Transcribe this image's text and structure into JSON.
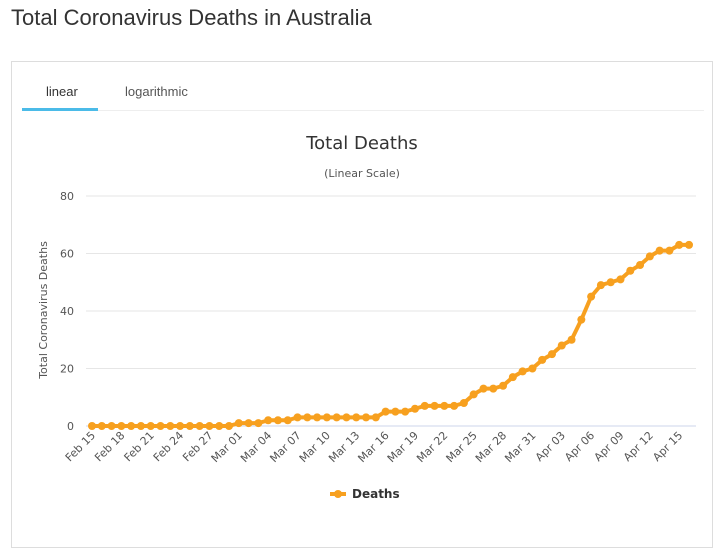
{
  "page": {
    "title": "Total Coronavirus Deaths in Australia"
  },
  "tabs": [
    {
      "label": "linear",
      "active": true
    },
    {
      "label": "logarithmic",
      "active": false
    }
  ],
  "colors": {
    "series": "#f7a01f",
    "tab_accent": "#4bbbe8",
    "grid": "#e6e6e6"
  },
  "chart_data": {
    "type": "line",
    "title": "Total Deaths",
    "subtitle": "(Linear Scale)",
    "ylabel": "Total Coronavirus Deaths",
    "xlabel": "",
    "ylim": [
      0,
      80
    ],
    "yticks": [
      0,
      20,
      40,
      60,
      80
    ],
    "grid": true,
    "legend_position": "bottom-center",
    "x_tick_labels": [
      "Feb 15",
      "Feb 18",
      "Feb 21",
      "Feb 24",
      "Feb 27",
      "Mar 01",
      "Mar 04",
      "Mar 07",
      "Mar 10",
      "Mar 13",
      "Mar 16",
      "Mar 19",
      "Mar 22",
      "Mar 25",
      "Mar 28",
      "Mar 31",
      "Apr 03",
      "Apr 06",
      "Apr 09",
      "Apr 12",
      "Apr 15"
    ],
    "categories": [
      "Feb 15",
      "Feb 16",
      "Feb 17",
      "Feb 18",
      "Feb 19",
      "Feb 20",
      "Feb 21",
      "Feb 22",
      "Feb 23",
      "Feb 24",
      "Feb 25",
      "Feb 26",
      "Feb 27",
      "Feb 28",
      "Feb 29",
      "Mar 01",
      "Mar 02",
      "Mar 03",
      "Mar 04",
      "Mar 05",
      "Mar 06",
      "Mar 07",
      "Mar 08",
      "Mar 09",
      "Mar 10",
      "Mar 11",
      "Mar 12",
      "Mar 13",
      "Mar 14",
      "Mar 15",
      "Mar 16",
      "Mar 17",
      "Mar 18",
      "Mar 19",
      "Mar 20",
      "Mar 21",
      "Mar 22",
      "Mar 23",
      "Mar 24",
      "Mar 25",
      "Mar 26",
      "Mar 27",
      "Mar 28",
      "Mar 29",
      "Mar 30",
      "Mar 31",
      "Apr 01",
      "Apr 02",
      "Apr 03",
      "Apr 04",
      "Apr 05",
      "Apr 06",
      "Apr 07",
      "Apr 08",
      "Apr 09",
      "Apr 10",
      "Apr 11",
      "Apr 12",
      "Apr 13",
      "Apr 14",
      "Apr 15",
      "Apr 16"
    ],
    "series": [
      {
        "name": "Deaths",
        "values": [
          0,
          0,
          0,
          0,
          0,
          0,
          0,
          0,
          0,
          0,
          0,
          0,
          0,
          0,
          0,
          1,
          1,
          1,
          2,
          2,
          2,
          3,
          3,
          3,
          3,
          3,
          3,
          3,
          3,
          3,
          5,
          5,
          5,
          6,
          7,
          7,
          7,
          7,
          8,
          11,
          13,
          13,
          14,
          17,
          19,
          20,
          23,
          25,
          28,
          30,
          37,
          45,
          49,
          50,
          51,
          54,
          56,
          59,
          61,
          61,
          63,
          63
        ]
      }
    ]
  }
}
